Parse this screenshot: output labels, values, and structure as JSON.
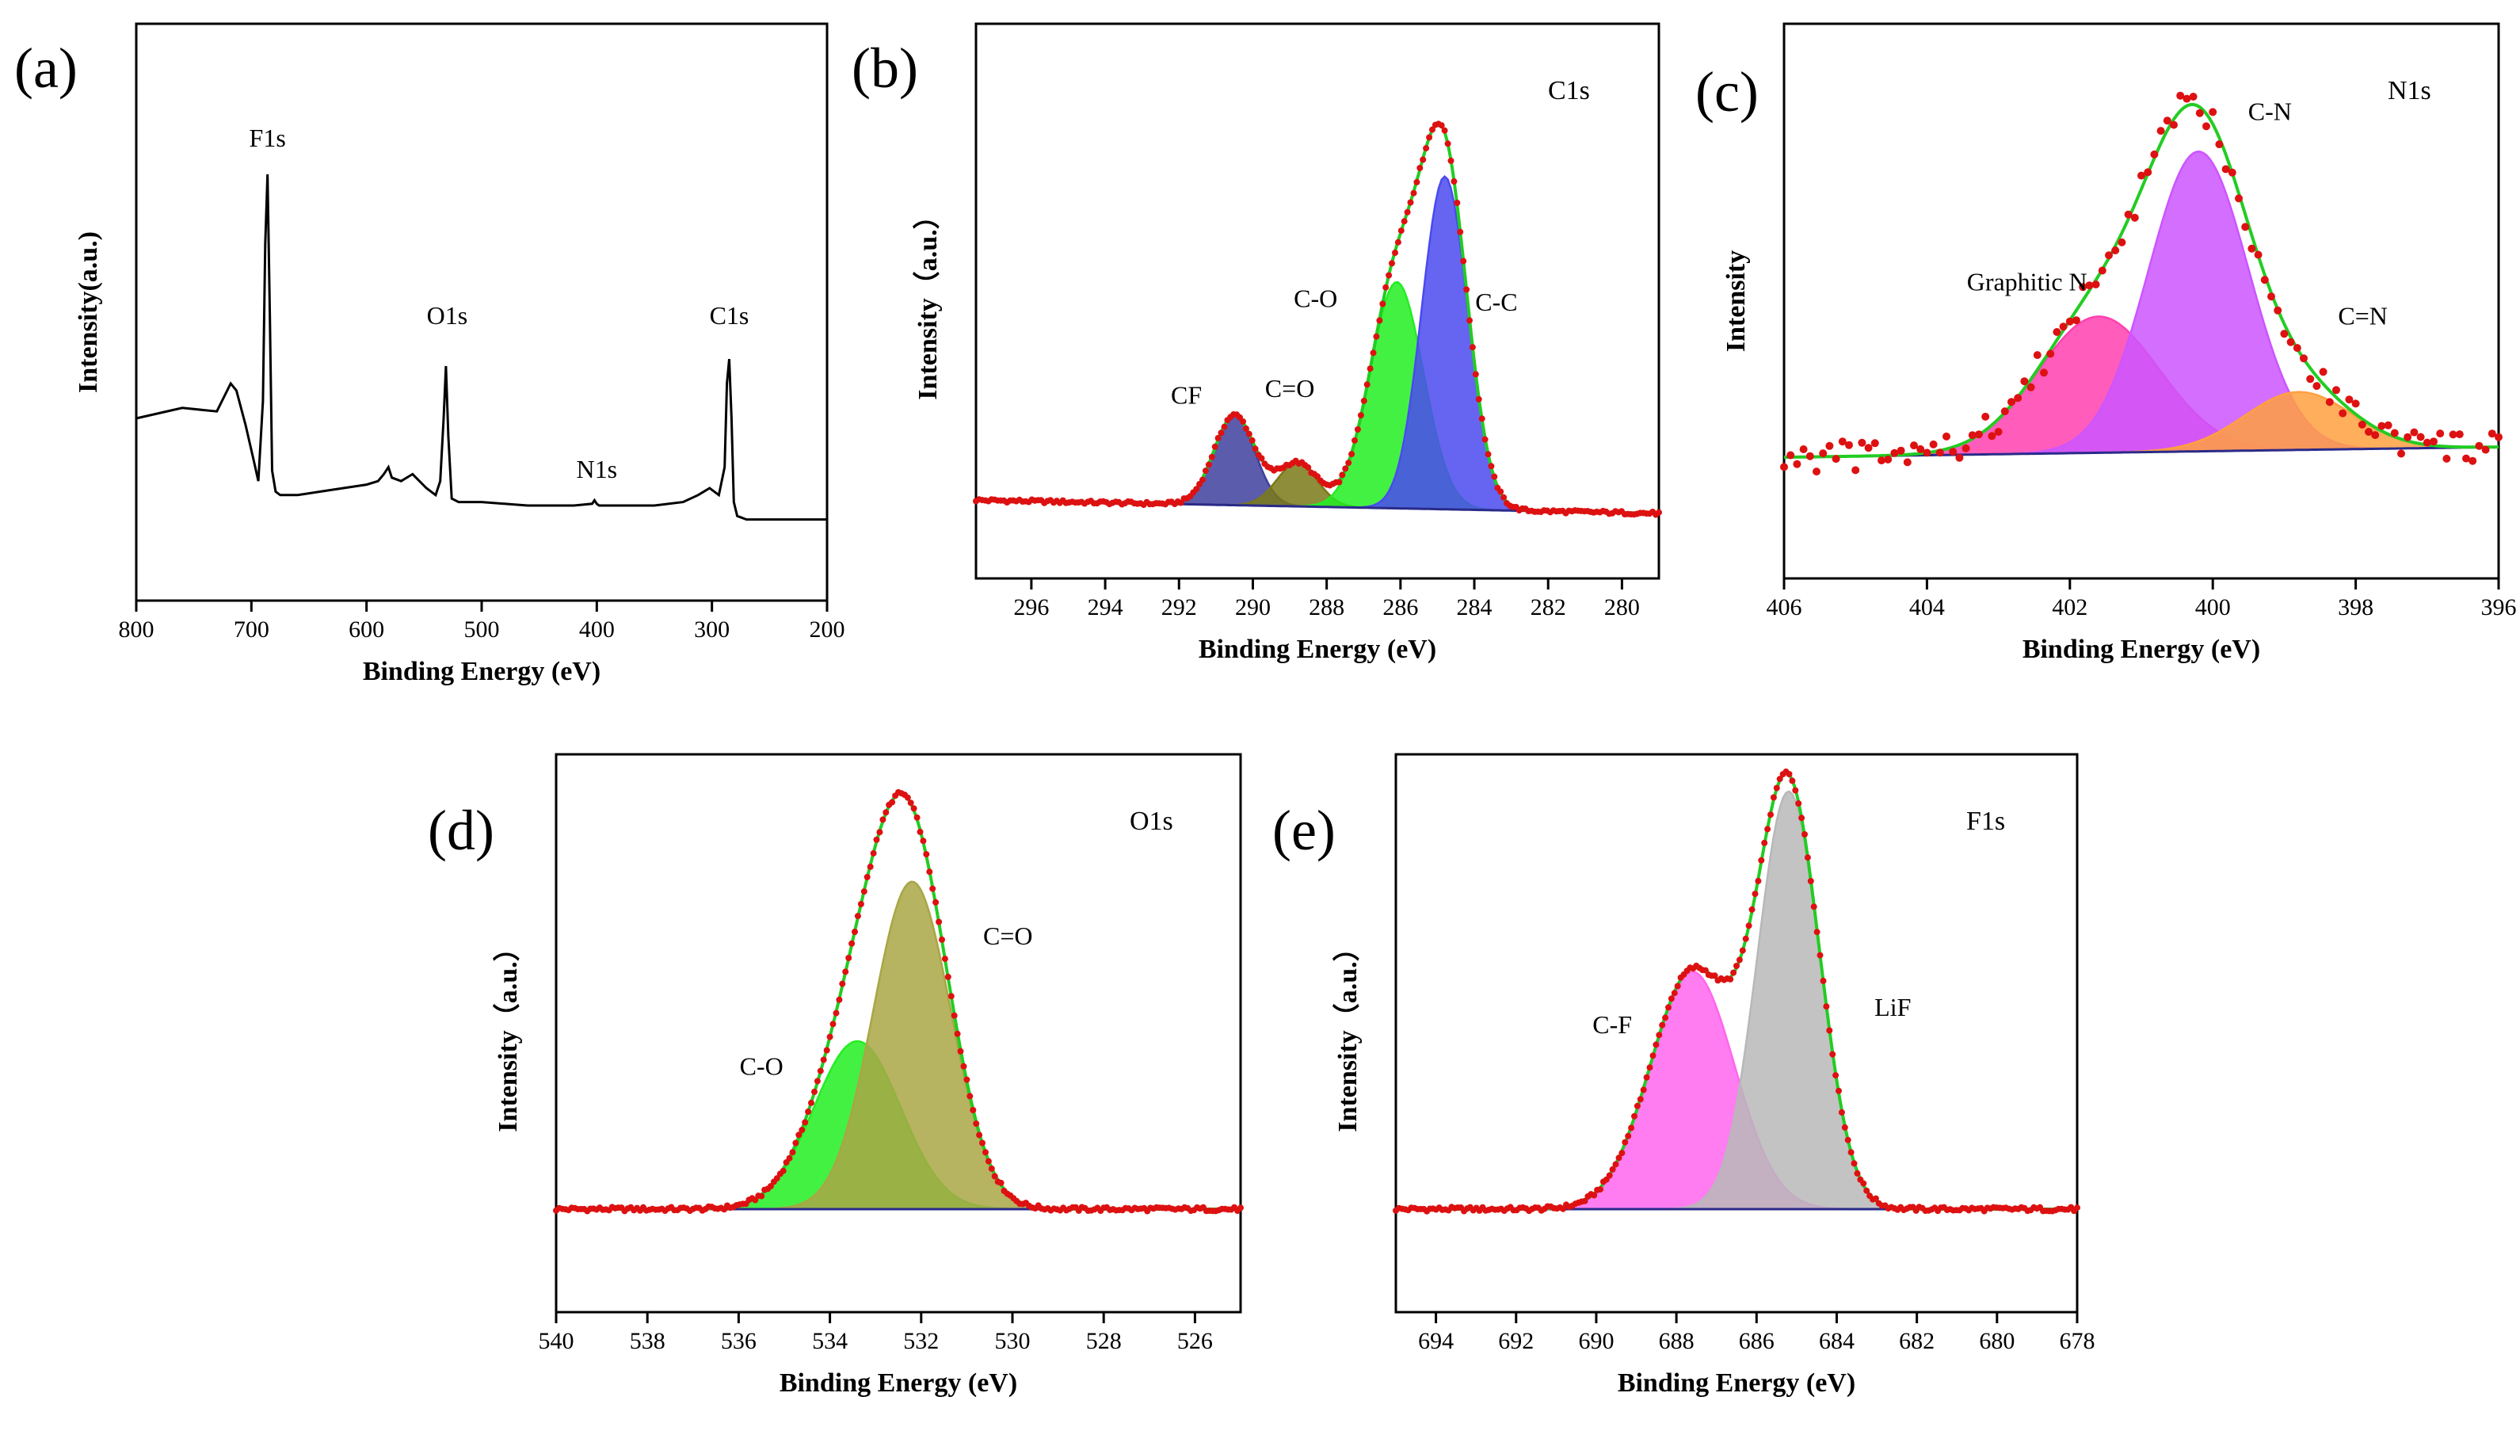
{
  "chart_data": [
    {
      "id": "a",
      "panel_label": "(a)",
      "type": "line",
      "xlabel": "Binding Energy (eV)",
      "ylabel": "Intensity(a.u.)",
      "title": "",
      "xlim": [
        800,
        200
      ],
      "xticks": [
        800,
        700,
        600,
        500,
        400,
        300,
        200
      ],
      "reversed_x": true,
      "series": [
        {
          "role": "survey",
          "color": "#000000",
          "x": [
            800,
            760,
            730,
            718,
            713,
            705,
            698,
            694,
            690,
            688,
            686,
            684,
            682,
            679,
            675,
            660,
            640,
            620,
            600,
            590,
            585,
            581,
            578,
            570,
            560,
            548,
            540,
            536,
            533,
            531,
            529,
            526,
            520,
            500,
            460,
            420,
            404,
            402,
            400,
            398,
            380,
            350,
            325,
            312,
            302,
            294,
            289,
            287,
            285,
            283,
            281,
            278,
            270,
            240,
            200
          ],
          "y": [
            0.3,
            0.33,
            0.32,
            0.4,
            0.38,
            0.28,
            0.18,
            0.12,
            0.35,
            0.8,
            1.0,
            0.6,
            0.15,
            0.09,
            0.08,
            0.08,
            0.09,
            0.1,
            0.11,
            0.12,
            0.14,
            0.16,
            0.13,
            0.12,
            0.14,
            0.1,
            0.08,
            0.12,
            0.3,
            0.45,
            0.25,
            0.07,
            0.06,
            0.06,
            0.05,
            0.05,
            0.055,
            0.065,
            0.055,
            0.05,
            0.05,
            0.05,
            0.06,
            0.08,
            0.1,
            0.08,
            0.16,
            0.4,
            0.47,
            0.3,
            0.06,
            0.02,
            0.01,
            0.01,
            0.01
          ]
        }
      ],
      "annotations": [
        {
          "text": "F1s",
          "x": 686,
          "y": 1.08
        },
        {
          "text": "O1s",
          "x": 530,
          "y": 0.57
        },
        {
          "text": "N1s",
          "x": 400,
          "y": 0.13
        },
        {
          "text": "C1s",
          "x": 285,
          "y": 0.57
        }
      ]
    },
    {
      "id": "b",
      "panel_label": "(b)",
      "type": "line",
      "corner_label": "C1s",
      "xlabel": "Binding Energy (eV)",
      "ylabel": "Intensity（a.u.）",
      "xlim": [
        297.5,
        279
      ],
      "xticks": [
        296,
        294,
        292,
        290,
        288,
        286,
        284,
        282,
        280
      ],
      "reversed_x": true,
      "baseline": {
        "x": [
          297.5,
          279
        ],
        "y": [
          0.04,
          0.0
        ]
      },
      "series": [
        {
          "name": "CF",
          "center": 290.5,
          "height": 0.27,
          "sigma": 0.55,
          "color": "#3f3f9e"
        },
        {
          "name": "C=O",
          "center": 288.8,
          "height": 0.13,
          "sigma": 0.55,
          "color": "#7a7a18"
        },
        {
          "name": "C-O",
          "center": 286.1,
          "height": 0.68,
          "sigma": 0.72,
          "color": "#22ee22"
        },
        {
          "name": "C-C",
          "center": 284.8,
          "height": 1.0,
          "sigma": 0.62,
          "color": "#4a4af0"
        }
      ],
      "annotations": [
        {
          "text": "CF",
          "x": 291.8,
          "y": 0.33
        },
        {
          "text": "C=O",
          "x": 289.0,
          "y": 0.35
        },
        {
          "text": "C-O",
          "x": 288.3,
          "y": 0.62
        },
        {
          "text": "C-C",
          "x": 283.4,
          "y": 0.61
        }
      ]
    },
    {
      "id": "c",
      "panel_label": "(c)",
      "type": "line",
      "corner_label": "N1s",
      "xlabel": "Binding Energy (eV)",
      "ylabel": "Intensity",
      "xlim": [
        406,
        396
      ],
      "xticks": [
        406,
        404,
        402,
        400,
        398,
        396
      ],
      "reversed_x": true,
      "baseline": {
        "x": [
          406,
          396
        ],
        "y": [
          0.03,
          0.06
        ]
      },
      "series": [
        {
          "name": "Graphitic N",
          "center": 401.6,
          "height": 0.4,
          "sigma": 0.85,
          "color": "#ff40b0"
        },
        {
          "name": "C-N",
          "center": 400.2,
          "height": 0.88,
          "sigma": 0.7,
          "color": "#cc55ff"
        },
        {
          "name": "C=N",
          "center": 398.8,
          "height": 0.17,
          "sigma": 0.75,
          "color": "#ffa040"
        }
      ],
      "annotations": [
        {
          "text": "Graphitic N",
          "x": 402.6,
          "y": 0.52
        },
        {
          "text": "C-N",
          "x": 399.2,
          "y": 1.02
        },
        {
          "text": "C=N",
          "x": 397.9,
          "y": 0.42
        }
      ]
    },
    {
      "id": "d",
      "panel_label": "(d)",
      "type": "line",
      "corner_label": "O1s",
      "xlabel": "Binding Energy (eV)",
      "ylabel": "Intensity（a.u.）",
      "xlim": [
        540,
        525
      ],
      "xticks": [
        540,
        538,
        536,
        534,
        532,
        530,
        528,
        526
      ],
      "reversed_x": true,
      "baseline": {
        "x": [
          540,
          525
        ],
        "y": [
          0.0,
          0.0
        ]
      },
      "series": [
        {
          "name": "C-O",
          "center": 533.4,
          "height": 0.4,
          "sigma": 0.95,
          "color": "#22ee22"
        },
        {
          "name": "C=O",
          "center": 532.2,
          "height": 0.78,
          "sigma": 0.85,
          "color": "#a9a645"
        }
      ],
      "annotations": [
        {
          "text": "C-O",
          "x": 535.5,
          "y": 0.32
        },
        {
          "text": "C=O",
          "x": 530.1,
          "y": 0.63
        }
      ]
    },
    {
      "id": "e",
      "panel_label": "(e)",
      "type": "line",
      "corner_label": "F1s",
      "xlabel": "Binding Energy (eV)",
      "ylabel": "Intensity（a.u.）",
      "xlim": [
        695,
        678
      ],
      "xticks": [
        694,
        692,
        690,
        688,
        686,
        684,
        682,
        680,
        678
      ],
      "reversed_x": true,
      "baseline": {
        "x": [
          695,
          678
        ],
        "y": [
          0.0,
          0.0
        ]
      },
      "series": [
        {
          "name": "C-F",
          "center": 687.6,
          "height": 0.54,
          "sigma": 1.05,
          "color": "#ff66ee"
        },
        {
          "name": "LiF",
          "center": 685.2,
          "height": 0.95,
          "sigma": 0.78,
          "color": "#b8b8b8"
        }
      ],
      "annotations": [
        {
          "text": "C-F",
          "x": 689.6,
          "y": 0.4
        },
        {
          "text": "LiF",
          "x": 682.6,
          "y": 0.44
        }
      ]
    }
  ],
  "colors": {
    "axis": "#000000",
    "raw_points": "#dd1111",
    "fit_envelope": "#22cc22",
    "baseline": "#2a2a8a"
  }
}
